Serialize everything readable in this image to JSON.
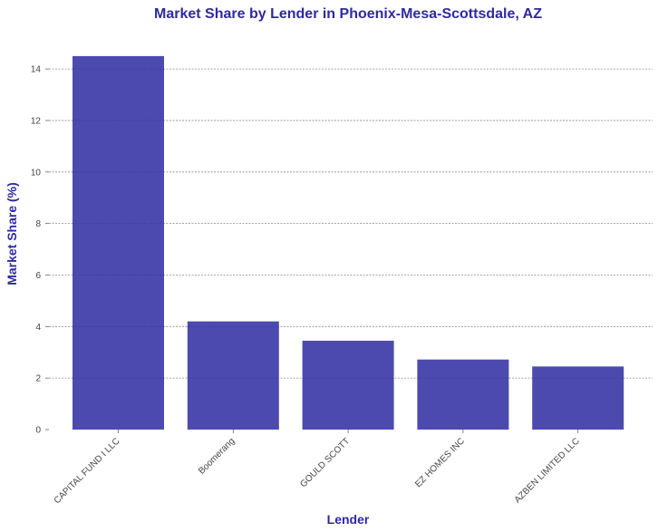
{
  "chart_data": {
    "type": "bar",
    "title": "Market Share by Lender in Phoenix-Mesa-Scottsdale, AZ",
    "xlabel": "Lender",
    "ylabel": "Market Share (%)",
    "categories": [
      "CAPITAL FUND I LLC",
      "Boomerang",
      "GOULD SCOTT",
      "EZ HOMES INC",
      "AZBEN LIMITED LLC"
    ],
    "values": [
      14.5,
      4.2,
      3.45,
      2.72,
      2.45
    ],
    "ylim": [
      0,
      15.2
    ],
    "yticks": [
      0,
      2,
      4,
      6,
      8,
      10,
      12,
      14
    ],
    "grid": "horizontal dashed",
    "legend": "none"
  },
  "colors": {
    "bar": "#2e2aa1",
    "title": "#2e2aa1",
    "grid": "#8a8a8a",
    "tick_text": "#444444"
  }
}
